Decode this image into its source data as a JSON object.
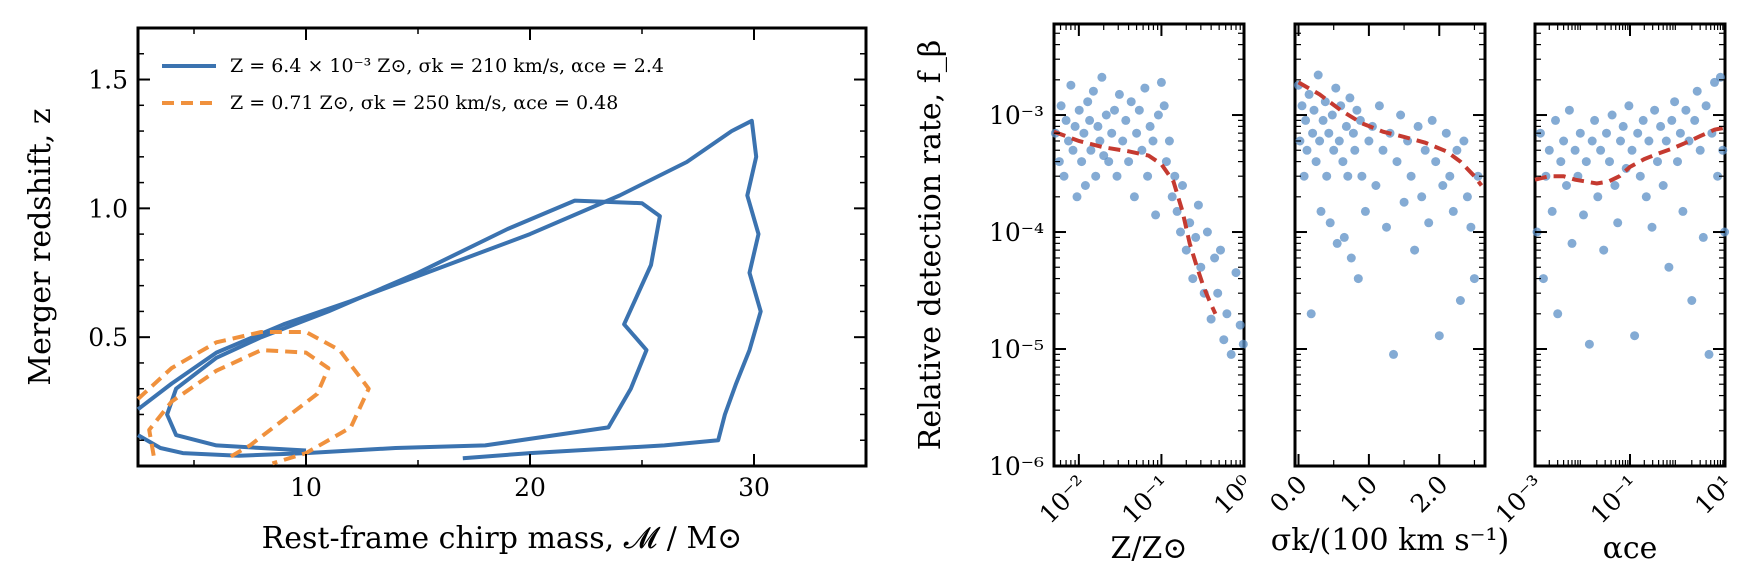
{
  "chart_data": [
    {
      "type": "line",
      "panel": "contours",
      "xlabel": "Rest-frame chirp mass, 𝓜 / M⊙",
      "ylabel": "Merger redshift, z",
      "xlim": [
        2.5,
        35
      ],
      "ylim": [
        0.0,
        1.7
      ],
      "xticks": [
        10,
        20,
        30
      ],
      "xtick_labels": [
        "10",
        "20",
        "30"
      ],
      "yticks": [
        0.5,
        1.0,
        1.5
      ],
      "ytick_labels": [
        "0.5",
        "1.0",
        "1.5"
      ],
      "legend_position": "top-left",
      "series": [
        {
          "name": "Z = 6.4 × 10⁻³ Z⊙, σk = 210 km/s, αce = 2.4",
          "color": "#3b73b0",
          "style": "solid",
          "contours": [
            [
              [
                2.5,
                0.22
              ],
              [
                4,
                0.32
              ],
              [
                6,
                0.44
              ],
              [
                9,
                0.55
              ],
              [
                12,
                0.64
              ],
              [
                16,
                0.77
              ],
              [
                20,
                0.9
              ],
              [
                24,
                1.05
              ],
              [
                27,
                1.18
              ],
              [
                29,
                1.3
              ],
              [
                29.9,
                1.34
              ],
              [
                30.1,
                1.2
              ],
              [
                29.7,
                1.05
              ],
              [
                30.2,
                0.9
              ],
              [
                29.8,
                0.75
              ],
              [
                30.3,
                0.6
              ],
              [
                29.8,
                0.45
              ],
              [
                29.2,
                0.32
              ],
              [
                28.7,
                0.2
              ],
              [
                28.4,
                0.1
              ],
              [
                26,
                0.08
              ],
              [
                20,
                0.05
              ],
              [
                17,
                0.03
              ]
            ],
            [
              [
                2.5,
                0.12
              ],
              [
                3.5,
                0.07
              ],
              [
                4.5,
                0.05
              ],
              [
                7,
                0.04
              ],
              [
                10,
                0.05
              ],
              [
                14,
                0.07
              ],
              [
                18,
                0.08
              ],
              [
                23.5,
                0.15
              ],
              [
                24.5,
                0.3
              ],
              [
                25.2,
                0.45
              ],
              [
                24.2,
                0.55
              ],
              [
                25.4,
                0.78
              ],
              [
                25.8,
                0.97
              ],
              [
                25,
                1.02
              ],
              [
                22,
                1.03
              ],
              [
                19,
                0.92
              ],
              [
                15,
                0.75
              ],
              [
                11,
                0.6
              ],
              [
                8,
                0.5
              ],
              [
                6,
                0.42
              ],
              [
                4.2,
                0.3
              ],
              [
                3.8,
                0.2
              ],
              [
                4.2,
                0.12
              ],
              [
                6,
                0.08
              ],
              [
                8,
                0.07
              ],
              [
                10,
                0.06
              ]
            ]
          ]
        },
        {
          "name": "Z = 0.71 Z⊙, σk = 250 km/s, αce = 0.48",
          "color": "#f0913d",
          "style": "dashed",
          "contours": [
            [
              [
                2.5,
                0.26
              ],
              [
                4,
                0.38
              ],
              [
                6,
                0.48
              ],
              [
                8,
                0.52
              ],
              [
                10,
                0.52
              ],
              [
                11.5,
                0.45
              ],
              [
                12.8,
                0.3
              ],
              [
                12,
                0.15
              ],
              [
                10,
                0.05
              ],
              [
                8.5,
                0.01
              ]
            ],
            [
              [
                3.2,
                0.04
              ],
              [
                3,
                0.14
              ],
              [
                4,
                0.25
              ],
              [
                6,
                0.37
              ],
              [
                8,
                0.45
              ],
              [
                10,
                0.44
              ],
              [
                11,
                0.38
              ],
              [
                10.5,
                0.28
              ],
              [
                9,
                0.18
              ],
              [
                7.5,
                0.08
              ],
              [
                6.5,
                0.03
              ]
            ]
          ]
        }
      ]
    },
    {
      "type": "scatter",
      "panel": "metallicity",
      "ylabel": "Relative detection rate, f_β",
      "xlabel": "Z/Z⊙",
      "xscale": "log",
      "xlim": [
        0.005,
        1.0
      ],
      "yscale": "log",
      "ylim": [
        1e-06,
        0.006
      ],
      "xticks": [
        0.01,
        0.1,
        1.0
      ],
      "xtick_labels": [
        "10⁻²",
        "10⁻¹",
        "10⁰"
      ],
      "yticks": [
        1e-06,
        1e-05,
        0.0001,
        0.001
      ],
      "ytick_labels": [
        "10⁻⁶",
        "10⁻⁵",
        "10⁻⁴",
        "10⁻³"
      ],
      "points": {
        "x": [
          0.0052,
          0.0058,
          0.0061,
          0.0066,
          0.007,
          0.0075,
          0.008,
          0.0085,
          0.009,
          0.0095,
          0.0101,
          0.0108,
          0.0115,
          0.012,
          0.0128,
          0.0135,
          0.014,
          0.015,
          0.016,
          0.017,
          0.018,
          0.019,
          0.02,
          0.0215,
          0.023,
          0.025,
          0.027,
          0.029,
          0.031,
          0.034,
          0.037,
          0.04,
          0.043,
          0.047,
          0.05,
          0.054,
          0.058,
          0.063,
          0.068,
          0.073,
          0.079,
          0.085,
          0.092,
          0.1,
          0.108,
          0.115,
          0.125,
          0.135,
          0.145,
          0.155,
          0.17,
          0.18,
          0.2,
          0.22,
          0.24,
          0.26,
          0.28,
          0.3,
          0.33,
          0.36,
          0.4,
          0.44,
          0.48,
          0.52,
          0.57,
          0.62,
          0.7,
          0.8,
          0.9,
          0.98
        ],
        "y": [
          0.0007,
          0.0004,
          0.0012,
          0.0003,
          0.0009,
          0.0006,
          0.0018,
          0.0005,
          0.0008,
          0.0002,
          0.0011,
          0.0004,
          0.0007,
          0.00025,
          0.0013,
          0.0009,
          0.0005,
          0.0016,
          0.0003,
          0.0008,
          0.0006,
          0.0021,
          0.00045,
          0.001,
          0.0004,
          0.0007,
          0.0011,
          0.0003,
          0.0015,
          0.0006,
          0.0009,
          0.0004,
          0.0013,
          0.0002,
          0.0007,
          0.0011,
          0.0005,
          0.0017,
          0.0003,
          0.0008,
          0.0006,
          0.00014,
          0.001,
          0.0019,
          0.0012,
          0.0004,
          0.0006,
          0.0002,
          0.0003,
          0.00015,
          0.0001,
          0.00025,
          7e-05,
          0.00012,
          4e-05,
          9e-05,
          0.00017,
          5e-05,
          3e-05,
          0.0001,
          1.8e-05,
          6e-05,
          3e-05,
          7e-05,
          1.2e-05,
          2e-05,
          9e-06,
          4.5e-05,
          1.6e-05,
          1.1e-05
        ]
      },
      "trend": {
        "x": [
          0.005,
          0.01,
          0.02,
          0.04,
          0.07,
          0.1,
          0.14,
          0.18,
          0.22,
          0.27,
          0.32,
          0.38,
          0.45
        ],
        "y": [
          0.00072,
          0.0006,
          0.00053,
          0.00049,
          0.00045,
          0.00038,
          0.00027,
          0.00015,
          8e-05,
          5e-05,
          3.5e-05,
          2.6e-05,
          2e-05
        ]
      }
    },
    {
      "type": "scatter",
      "panel": "kick",
      "xlabel": "σk/(100 km s⁻¹)",
      "xscale": "linear",
      "xlim": [
        -0.05,
        2.65
      ],
      "yscale": "log",
      "ylim": [
        1e-06,
        0.006
      ],
      "xticks": [
        0.0,
        1.0,
        2.0
      ],
      "xtick_labels": [
        "0.0",
        "1.0",
        "2.0"
      ],
      "points": {
        "x": [
          0.0,
          0.02,
          0.05,
          0.08,
          0.1,
          0.12,
          0.15,
          0.18,
          0.2,
          0.22,
          0.25,
          0.28,
          0.3,
          0.32,
          0.35,
          0.38,
          0.4,
          0.43,
          0.45,
          0.48,
          0.5,
          0.53,
          0.55,
          0.58,
          0.6,
          0.63,
          0.65,
          0.68,
          0.7,
          0.73,
          0.75,
          0.78,
          0.8,
          0.83,
          0.85,
          0.88,
          0.9,
          0.95,
          1.0,
          1.05,
          1.1,
          1.15,
          1.2,
          1.25,
          1.3,
          1.35,
          1.4,
          1.45,
          1.5,
          1.55,
          1.6,
          1.65,
          1.7,
          1.75,
          1.8,
          1.85,
          1.9,
          1.95,
          2.0,
          2.05,
          2.1,
          2.15,
          2.2,
          2.25,
          2.3,
          2.35,
          2.4,
          2.45,
          2.5,
          2.55
        ],
        "y": [
          0.0018,
          0.0006,
          0.0012,
          0.0003,
          0.0009,
          0.0005,
          0.0015,
          2e-05,
          0.0007,
          0.0011,
          0.0004,
          0.0022,
          0.0006,
          0.00015,
          0.0009,
          0.0013,
          0.0003,
          0.0007,
          0.00012,
          0.001,
          0.0005,
          0.0017,
          8e-05,
          0.0006,
          0.0012,
          0.0004,
          9e-05,
          0.0008,
          0.0003,
          0.0014,
          6e-05,
          0.0007,
          0.0005,
          0.0011,
          4e-05,
          0.0009,
          0.0003,
          0.00015,
          0.0006,
          0.0008,
          0.00025,
          0.0012,
          0.0005,
          0.00011,
          0.0007,
          9e-06,
          0.0004,
          0.001,
          0.00018,
          0.0006,
          0.0003,
          7e-05,
          0.0008,
          0.0002,
          0.0005,
          0.00012,
          0.0009,
          0.0004,
          1.3e-05,
          0.00025,
          0.0007,
          0.0003,
          0.00015,
          0.0005,
          2.6e-05,
          0.0006,
          0.0002,
          0.00011,
          4e-05,
          0.0003
        ],
        "y_note": ""
      },
      "trend": {
        "x": [
          0.0,
          0.3,
          0.6,
          0.9,
          1.2,
          1.5,
          1.8,
          2.1,
          2.3,
          2.5,
          2.6
        ],
        "y": [
          0.0019,
          0.0015,
          0.0011,
          0.00085,
          0.00072,
          0.00065,
          0.00058,
          0.00049,
          0.0004,
          0.0003,
          0.00025
        ]
      }
    },
    {
      "type": "scatter",
      "panel": "common-envelope",
      "xlabel": "αce",
      "xscale": "log",
      "xlim": [
        0.001,
        10
      ],
      "yscale": "log",
      "ylim": [
        1e-06,
        0.006
      ],
      "xticks": [
        0.001,
        0.1,
        10
      ],
      "xtick_labels": [
        "10⁻³",
        "10⁻¹",
        "10¹"
      ],
      "points": {
        "x": [
          0.0011,
          0.0013,
          0.0015,
          0.0017,
          0.002,
          0.0023,
          0.0027,
          0.003,
          0.0035,
          0.004,
          0.0046,
          0.0053,
          0.006,
          0.007,
          0.008,
          0.009,
          0.0105,
          0.012,
          0.014,
          0.016,
          0.018,
          0.021,
          0.024,
          0.028,
          0.032,
          0.037,
          0.042,
          0.048,
          0.055,
          0.063,
          0.072,
          0.083,
          0.095,
          0.11,
          0.125,
          0.145,
          0.165,
          0.19,
          0.22,
          0.25,
          0.29,
          0.33,
          0.38,
          0.44,
          0.5,
          0.58,
          0.66,
          0.76,
          0.87,
          1.0,
          1.15,
          1.3,
          1.5,
          1.75,
          2.0,
          2.3,
          2.6,
          3.0,
          3.5,
          4.0,
          4.6,
          5.3,
          6.0,
          7.0,
          8.0,
          9.0,
          9.8
        ],
        "y": [
          0.0001,
          0.0007,
          4e-05,
          0.0003,
          0.0005,
          0.00015,
          0.0009,
          2e-05,
          0.0004,
          0.0006,
          0.00025,
          0.0011,
          8e-05,
          0.0005,
          0.0003,
          0.0007,
          0.00014,
          0.0004,
          1.1e-05,
          0.0006,
          0.0009,
          0.0002,
          0.0005,
          7e-05,
          0.0007,
          0.0004,
          0.001,
          0.00025,
          0.00012,
          0.0006,
          0.0008,
          0.00035,
          0.0012,
          0.0005,
          1.3e-05,
          0.0007,
          0.0003,
          0.0009,
          0.0002,
          0.0006,
          0.00011,
          0.0011,
          0.0004,
          0.0008,
          0.00025,
          0.0006,
          5e-05,
          0.0009,
          0.0013,
          0.0004,
          0.0007,
          0.00015,
          0.0011,
          0.0006,
          2.6e-05,
          0.0009,
          0.0016,
          0.0005,
          9e-05,
          0.0012,
          9e-06,
          0.0007,
          0.0019,
          0.0003,
          0.0021,
          0.0005,
          0.0001
        ],
        "y_note": ""
      },
      "trend": {
        "x": [
          0.001,
          0.002,
          0.004,
          0.007,
          0.012,
          0.02,
          0.035,
          0.06,
          0.1,
          0.2,
          0.4,
          0.8,
          1.5,
          3,
          6,
          10
        ],
        "y": [
          0.00028,
          0.0003,
          0.0003,
          0.00028,
          0.00027,
          0.00026,
          0.00027,
          0.0003,
          0.00036,
          0.00042,
          0.00047,
          0.00052,
          0.00058,
          0.00066,
          0.00075,
          0.00078
        ]
      }
    }
  ]
}
